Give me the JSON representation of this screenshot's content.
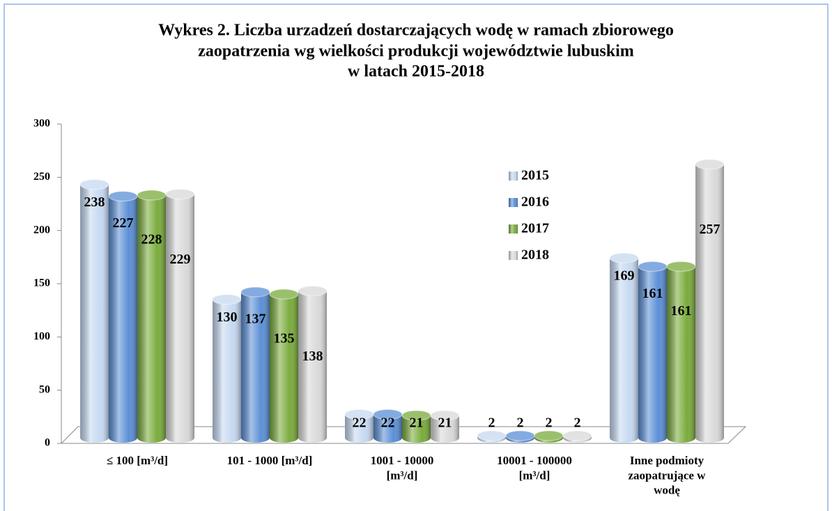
{
  "chart_data": {
    "type": "bar",
    "title": [
      "Wykres 2. Liczba urzadzeń dostarczających wodę w ramach zbiorowego",
      "zaopatrzenia wg wielkości produkcji  województwie lubuskim",
      "w latach 2015-2018"
    ],
    "categories": [
      "≤ 100 [m³/d]",
      "101 - 1000 [m³/d]",
      "1001 - 10000\n[m³/d]",
      "10001 - 100000\n[m³/d]",
      "Inne podmioty\nzaopatrujące w\nwodę"
    ],
    "series": [
      {
        "name": "2015",
        "color": "#c6d9f1",
        "values": [
          238,
          130,
          22,
          2,
          169
        ]
      },
      {
        "name": "2016",
        "color": "#5b8fd6",
        "values": [
          227,
          137,
          22,
          2,
          161
        ]
      },
      {
        "name": "2017",
        "color": "#7aab3c",
        "values": [
          228,
          135,
          21,
          2,
          161
        ]
      },
      {
        "name": "2018",
        "color": "#d9d9d9",
        "values": [
          229,
          138,
          21,
          2,
          257
        ]
      }
    ],
    "ylim": [
      0,
      300
    ],
    "yticks": [
      0,
      50,
      100,
      150,
      200,
      250,
      300
    ],
    "legend": "right"
  }
}
